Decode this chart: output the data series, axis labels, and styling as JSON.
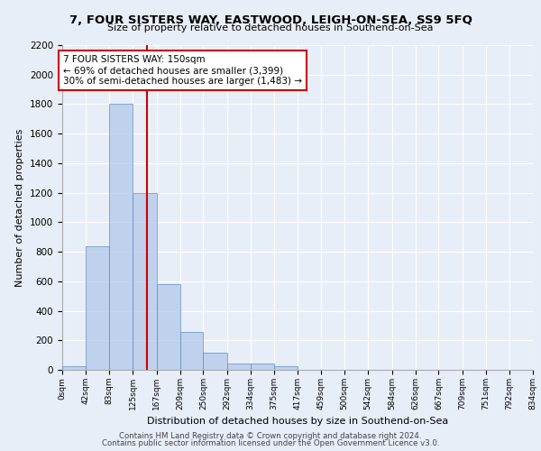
{
  "title1": "7, FOUR SISTERS WAY, EASTWOOD, LEIGH-ON-SEA, SS9 5FQ",
  "title2": "Size of property relative to detached houses in Southend-on-Sea",
  "xlabel": "Distribution of detached houses by size in Southend-on-Sea",
  "ylabel": "Number of detached properties",
  "bin_edges": [
    0,
    42,
    83,
    125,
    167,
    209,
    250,
    292,
    334,
    375,
    417,
    459,
    500,
    542,
    584,
    626,
    667,
    709,
    751,
    792,
    834
  ],
  "counts": [
    25,
    840,
    1800,
    1200,
    580,
    255,
    115,
    40,
    45,
    25,
    0,
    0,
    0,
    0,
    0,
    0,
    0,
    0,
    0,
    0
  ],
  "property_size": 150,
  "annotation_line1": "7 FOUR SISTERS WAY: 150sqm",
  "annotation_line2": "← 69% of detached houses are smaller (3,399)",
  "annotation_line3": "30% of semi-detached houses are larger (1,483) →",
  "bar_color": "#aec6e8",
  "bar_edge_color": "#5a8fc3",
  "red_line_color": "#cc0000",
  "annotation_box_color": "#ffffff",
  "annotation_box_edge": "#cc0000",
  "bg_color": "#e8eef7",
  "grid_color": "#ffffff",
  "footer1": "Contains HM Land Registry data © Crown copyright and database right 2024.",
  "footer2": "Contains public sector information licensed under the Open Government Licence v3.0."
}
